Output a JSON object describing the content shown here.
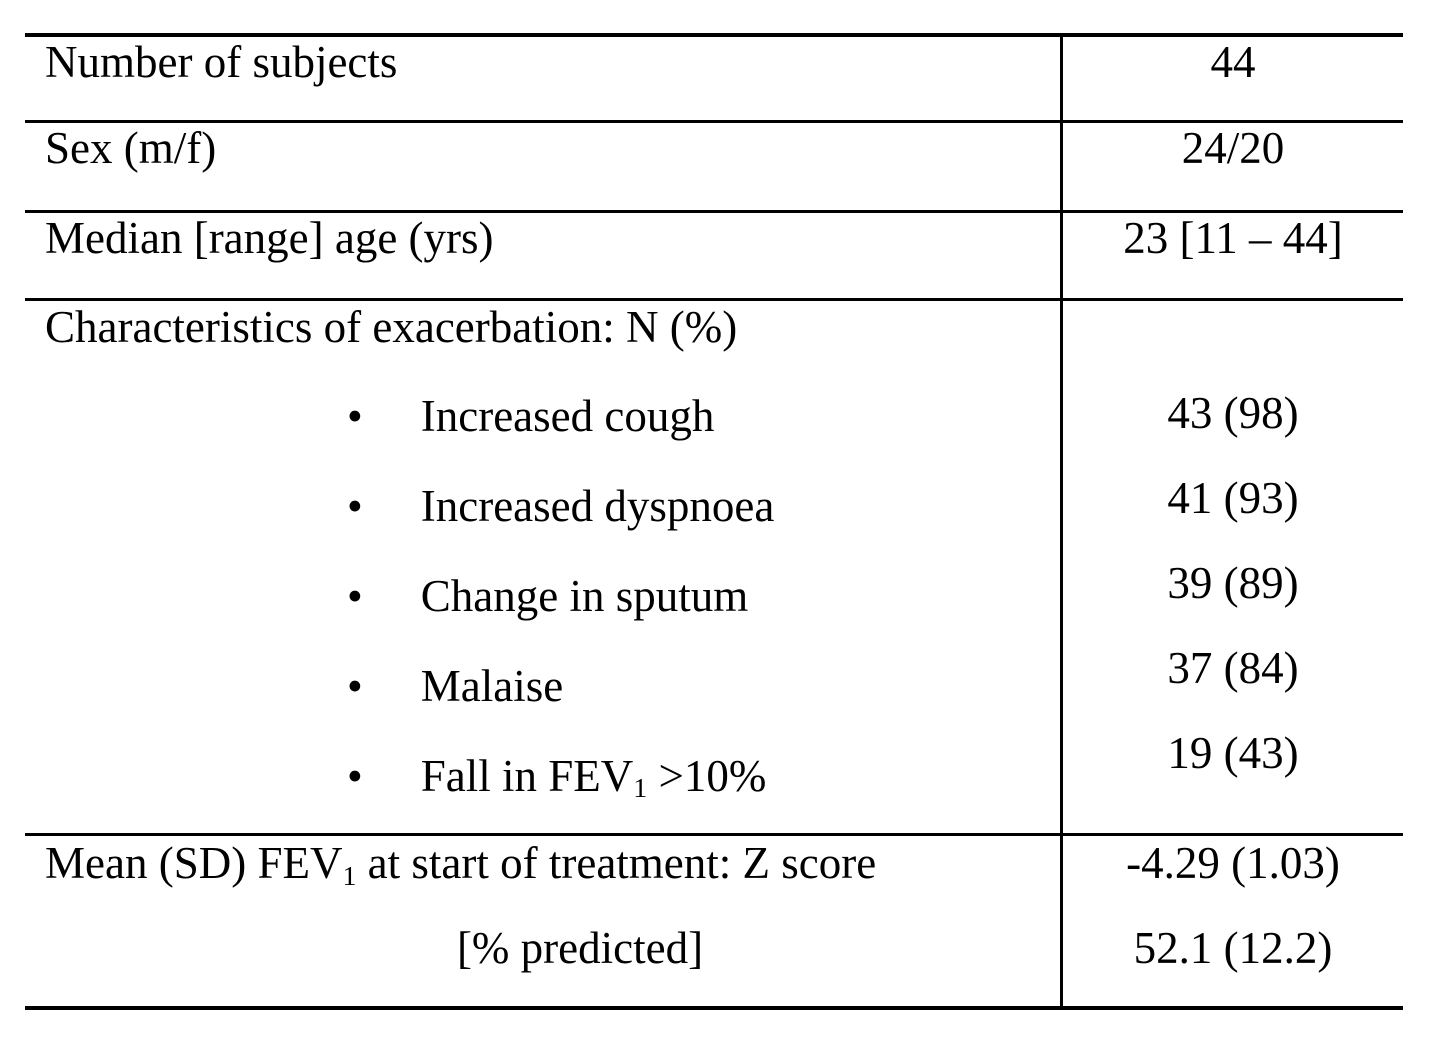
{
  "table": {
    "rows": [
      {
        "label": "Number of subjects",
        "value": "44"
      },
      {
        "label": "Sex (m/f)",
        "value": "24/20"
      },
      {
        "label": "Median [range] age (yrs)",
        "value": "23 [11 – 44]"
      }
    ],
    "characteristics": {
      "header": "Characteristics of exacerbation: N (%)",
      "bullet": "•",
      "items": [
        {
          "label": "Increased cough",
          "value": "43 (98)"
        },
        {
          "label": "Increased dyspnoea",
          "value": "41 (93)"
        },
        {
          "label": "Change in sputum",
          "value": "39 (89)"
        },
        {
          "label": "Malaise",
          "value": "37 (84)"
        },
        {
          "label_pre": "Fall in FEV",
          "label_sub": "1",
          "label_post": " >10%",
          "value": "19 (43)"
        }
      ]
    },
    "fev": {
      "label_pre": "Mean (SD) FEV",
      "label_sub": "1",
      "label_post": " at start of treatment: Z score",
      "label_line2": "[% predicted]",
      "value_line1": "-4.29 (1.03)",
      "value_line2": "52.1 (12.2)"
    }
  }
}
